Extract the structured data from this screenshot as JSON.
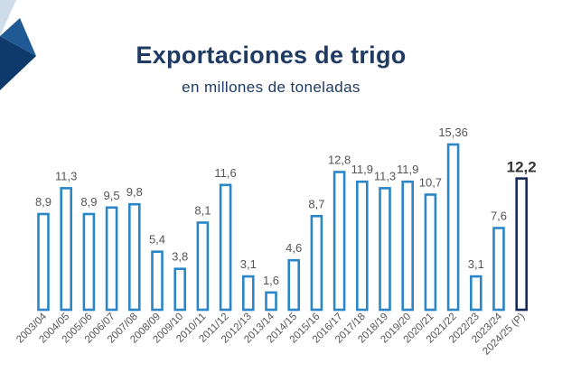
{
  "chart_data": {
    "type": "bar",
    "title": "Exportaciones de trigo",
    "subtitle": "en millones de toneladas",
    "xlabel": "",
    "ylabel": "",
    "ylim": [
      0,
      16
    ],
    "grid": false,
    "categories": [
      "2003/04",
      "2004/05",
      "2005/06",
      "2006/07",
      "2007/08",
      "2008/09",
      "2009/10",
      "2010/11",
      "2011/12",
      "2012/13",
      "2013/14",
      "2014/15",
      "2015/16",
      "2016/17",
      "2017/18",
      "2018/19",
      "2019/20",
      "2020/21",
      "2021/22",
      "2022/23",
      "2023/24",
      "2024/25 (P)"
    ],
    "values": [
      8.9,
      11.3,
      8.9,
      9.5,
      9.8,
      5.4,
      3.8,
      8.1,
      11.6,
      3.1,
      1.6,
      4.6,
      8.7,
      12.8,
      11.9,
      11.3,
      11.9,
      10.7,
      15.36,
      3.1,
      7.6,
      12.2
    ],
    "labels": [
      "8,9",
      "11,3",
      "8,9",
      "9,5",
      "9,8",
      "5,4",
      "3,8",
      "8,1",
      "11,6",
      "3,1",
      "1,6",
      "4,6",
      "8,7",
      "12,8",
      "11,9",
      "11,3",
      "11,9",
      "10,7",
      "15,36",
      "3,1",
      "7,6",
      "12,2"
    ],
    "highlight_index": 21
  },
  "colors": {
    "bar": "#2a86c6",
    "highlight_bar": "#142a5c",
    "title": "#1f3b64",
    "logo_dark": "#0e3a6b",
    "logo_light": "#cfdcea"
  }
}
